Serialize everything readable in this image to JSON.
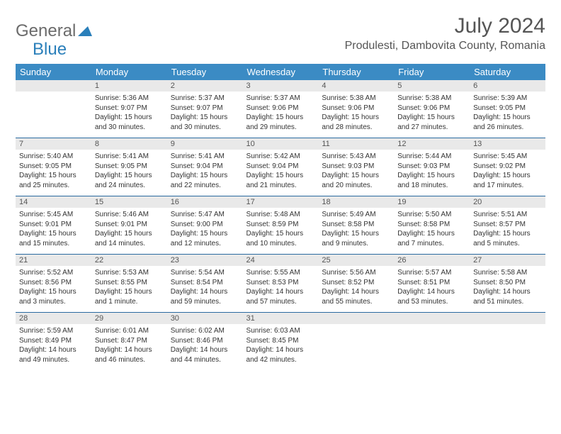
{
  "logo": {
    "part1": "General",
    "part2": "Blue"
  },
  "title": "July 2024",
  "location": "Produlesti, Dambovita County, Romania",
  "colors": {
    "header_bg": "#3b8bc4",
    "header_text": "#ffffff",
    "daynum_bg": "#e9e9e9",
    "border": "#2a6aa0",
    "logo_gray": "#6b6b6b",
    "logo_blue": "#2a7fba"
  },
  "weekdays": [
    "Sunday",
    "Monday",
    "Tuesday",
    "Wednesday",
    "Thursday",
    "Friday",
    "Saturday"
  ],
  "weeks": [
    {
      "nums": [
        "",
        "1",
        "2",
        "3",
        "4",
        "5",
        "6"
      ],
      "cells": [
        "",
        "Sunrise: 5:36 AM\nSunset: 9:07 PM\nDaylight: 15 hours and 30 minutes.",
        "Sunrise: 5:37 AM\nSunset: 9:07 PM\nDaylight: 15 hours and 30 minutes.",
        "Sunrise: 5:37 AM\nSunset: 9:06 PM\nDaylight: 15 hours and 29 minutes.",
        "Sunrise: 5:38 AM\nSunset: 9:06 PM\nDaylight: 15 hours and 28 minutes.",
        "Sunrise: 5:38 AM\nSunset: 9:06 PM\nDaylight: 15 hours and 27 minutes.",
        "Sunrise: 5:39 AM\nSunset: 9:05 PM\nDaylight: 15 hours and 26 minutes."
      ]
    },
    {
      "nums": [
        "7",
        "8",
        "9",
        "10",
        "11",
        "12",
        "13"
      ],
      "cells": [
        "Sunrise: 5:40 AM\nSunset: 9:05 PM\nDaylight: 15 hours and 25 minutes.",
        "Sunrise: 5:41 AM\nSunset: 9:05 PM\nDaylight: 15 hours and 24 minutes.",
        "Sunrise: 5:41 AM\nSunset: 9:04 PM\nDaylight: 15 hours and 22 minutes.",
        "Sunrise: 5:42 AM\nSunset: 9:04 PM\nDaylight: 15 hours and 21 minutes.",
        "Sunrise: 5:43 AM\nSunset: 9:03 PM\nDaylight: 15 hours and 20 minutes.",
        "Sunrise: 5:44 AM\nSunset: 9:03 PM\nDaylight: 15 hours and 18 minutes.",
        "Sunrise: 5:45 AM\nSunset: 9:02 PM\nDaylight: 15 hours and 17 minutes."
      ]
    },
    {
      "nums": [
        "14",
        "15",
        "16",
        "17",
        "18",
        "19",
        "20"
      ],
      "cells": [
        "Sunrise: 5:45 AM\nSunset: 9:01 PM\nDaylight: 15 hours and 15 minutes.",
        "Sunrise: 5:46 AM\nSunset: 9:01 PM\nDaylight: 15 hours and 14 minutes.",
        "Sunrise: 5:47 AM\nSunset: 9:00 PM\nDaylight: 15 hours and 12 minutes.",
        "Sunrise: 5:48 AM\nSunset: 8:59 PM\nDaylight: 15 hours and 10 minutes.",
        "Sunrise: 5:49 AM\nSunset: 8:58 PM\nDaylight: 15 hours and 9 minutes.",
        "Sunrise: 5:50 AM\nSunset: 8:58 PM\nDaylight: 15 hours and 7 minutes.",
        "Sunrise: 5:51 AM\nSunset: 8:57 PM\nDaylight: 15 hours and 5 minutes."
      ]
    },
    {
      "nums": [
        "21",
        "22",
        "23",
        "24",
        "25",
        "26",
        "27"
      ],
      "cells": [
        "Sunrise: 5:52 AM\nSunset: 8:56 PM\nDaylight: 15 hours and 3 minutes.",
        "Sunrise: 5:53 AM\nSunset: 8:55 PM\nDaylight: 15 hours and 1 minute.",
        "Sunrise: 5:54 AM\nSunset: 8:54 PM\nDaylight: 14 hours and 59 minutes.",
        "Sunrise: 5:55 AM\nSunset: 8:53 PM\nDaylight: 14 hours and 57 minutes.",
        "Sunrise: 5:56 AM\nSunset: 8:52 PM\nDaylight: 14 hours and 55 minutes.",
        "Sunrise: 5:57 AM\nSunset: 8:51 PM\nDaylight: 14 hours and 53 minutes.",
        "Sunrise: 5:58 AM\nSunset: 8:50 PM\nDaylight: 14 hours and 51 minutes."
      ]
    },
    {
      "nums": [
        "28",
        "29",
        "30",
        "31",
        "",
        "",
        ""
      ],
      "cells": [
        "Sunrise: 5:59 AM\nSunset: 8:49 PM\nDaylight: 14 hours and 49 minutes.",
        "Sunrise: 6:01 AM\nSunset: 8:47 PM\nDaylight: 14 hours and 46 minutes.",
        "Sunrise: 6:02 AM\nSunset: 8:46 PM\nDaylight: 14 hours and 44 minutes.",
        "Sunrise: 6:03 AM\nSunset: 8:45 PM\nDaylight: 14 hours and 42 minutes.",
        "",
        "",
        ""
      ]
    }
  ]
}
